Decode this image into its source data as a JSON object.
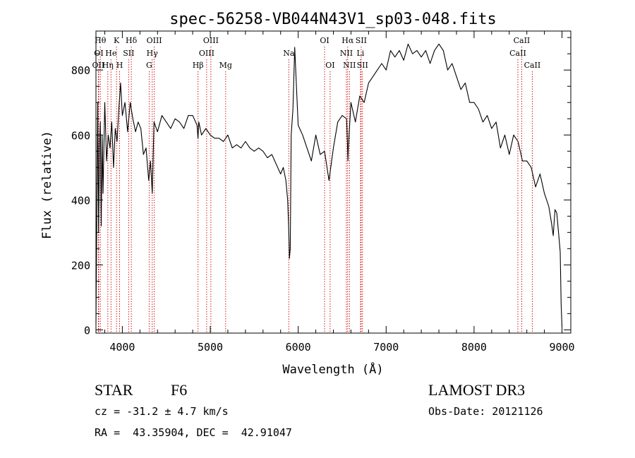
{
  "chart_data": {
    "type": "line",
    "title": "spec-56258-VB044N43V1_sp03-048.fits",
    "xlabel": "Wavelength (Å)",
    "ylabel": "Flux (relative)",
    "xlim": [
      3700,
      9100
    ],
    "ylim": [
      -10,
      920
    ],
    "xticks": [
      4000,
      5000,
      6000,
      7000,
      8000,
      9000
    ],
    "yticks": [
      0,
      200,
      400,
      600,
      800
    ],
    "xtick_labels": [
      "4000",
      "5000",
      "6000",
      "7000",
      "8000",
      "9000"
    ],
    "ytick_labels": [
      "0",
      "200",
      "400",
      "600",
      "800"
    ],
    "line_color": "#000000",
    "marker_color": "#cc0000",
    "series": [
      {
        "name": "flux",
        "x": [
          3700,
          3710,
          3720,
          3730,
          3740,
          3750,
          3760,
          3770,
          3780,
          3800,
          3820,
          3840,
          3860,
          3880,
          3900,
          3920,
          3940,
          3960,
          3980,
          4000,
          4030,
          4060,
          4090,
          4120,
          4150,
          4180,
          4210,
          4240,
          4270,
          4300,
          4320,
          4340,
          4360,
          4400,
          4450,
          4500,
          4550,
          4600,
          4650,
          4700,
          4750,
          4800,
          4850,
          4860,
          4870,
          4900,
          4950,
          5000,
          5050,
          5100,
          5150,
          5200,
          5250,
          5300,
          5350,
          5400,
          5450,
          5500,
          5550,
          5600,
          5650,
          5700,
          5750,
          5800,
          5830,
          5860,
          5880,
          5890,
          5895,
          5900,
          5910,
          5920,
          5940,
          5960,
          6000,
          6050,
          6100,
          6150,
          6200,
          6250,
          6300,
          6350,
          6400,
          6450,
          6500,
          6550,
          6560,
          6565,
          6570,
          6600,
          6650,
          6700,
          6750,
          6800,
          6850,
          6900,
          6950,
          7000,
          7050,
          7100,
          7150,
          7200,
          7250,
          7300,
          7350,
          7400,
          7450,
          7500,
          7550,
          7600,
          7650,
          7700,
          7750,
          7800,
          7850,
          7900,
          7950,
          8000,
          8050,
          8100,
          8150,
          8200,
          8250,
          8300,
          8350,
          8400,
          8450,
          8500,
          8550,
          8600,
          8650,
          8700,
          8750,
          8800,
          8850,
          8880,
          8900,
          8920,
          8940,
          8960,
          8980,
          8990,
          9000
        ],
        "values": [
          20,
          360,
          700,
          300,
          560,
          640,
          320,
          600,
          420,
          700,
          520,
          600,
          560,
          640,
          500,
          620,
          580,
          680,
          760,
          660,
          700,
          610,
          700,
          650,
          610,
          640,
          620,
          540,
          560,
          460,
          520,
          420,
          640,
          610,
          660,
          640,
          620,
          650,
          640,
          620,
          660,
          660,
          630,
          590,
          640,
          600,
          620,
          600,
          590,
          590,
          580,
          600,
          560,
          570,
          560,
          580,
          560,
          550,
          560,
          550,
          530,
          540,
          510,
          480,
          500,
          460,
          400,
          330,
          280,
          220,
          250,
          600,
          680,
          870,
          630,
          600,
          560,
          520,
          600,
          540,
          550,
          460,
          560,
          640,
          660,
          650,
          580,
          520,
          560,
          700,
          640,
          720,
          700,
          760,
          780,
          800,
          820,
          800,
          860,
          840,
          860,
          830,
          880,
          850,
          860,
          840,
          860,
          820,
          860,
          880,
          860,
          800,
          820,
          780,
          740,
          760,
          700,
          700,
          680,
          640,
          660,
          620,
          640,
          560,
          600,
          540,
          600,
          580,
          520,
          520,
          500,
          440,
          480,
          420,
          380,
          330,
          290,
          370,
          360,
          300,
          240,
          80,
          10
        ]
      }
    ],
    "line_markers": [
      {
        "label": "OII",
        "x": 3727,
        "row": 2
      },
      {
        "label": "OI",
        "x": 3732,
        "row": 1
      },
      {
        "label": "Hθ",
        "x": 3750,
        "row": 0
      },
      {
        "label": "Hη",
        "x": 3835,
        "row": 2
      },
      {
        "label": "He",
        "x": 3871,
        "row": 1
      },
      {
        "label": "K",
        "x": 3934,
        "row": 0
      },
      {
        "label": "H",
        "x": 3969,
        "row": 2
      },
      {
        "label": "SII",
        "x": 4072,
        "row": 1
      },
      {
        "label": "Hδ",
        "x": 4102,
        "row": 0
      },
      {
        "label": "G",
        "x": 4305,
        "row": 2
      },
      {
        "label": "Hγ",
        "x": 4340,
        "row": 1
      },
      {
        "label": "OIII",
        "x": 4363,
        "row": 0
      },
      {
        "label": "Hβ",
        "x": 4861,
        "row": 2
      },
      {
        "label": "OIII",
        "x": 4959,
        "row": 1
      },
      {
        "label": "OIII",
        "x": 5007,
        "row": 0
      },
      {
        "label": "Mg",
        "x": 5175,
        "row": 2
      },
      {
        "label": "Na",
        "x": 5893,
        "row": 1
      },
      {
        "label": "OI",
        "x": 6300,
        "row": 0
      },
      {
        "label": "OI",
        "x": 6363,
        "row": 2
      },
      {
        "label": "NII",
        "x": 6548,
        "row": 1
      },
      {
        "label": "Hα",
        "x": 6563,
        "row": 0
      },
      {
        "label": "NII",
        "x": 6583,
        "row": 2
      },
      {
        "label": "Li",
        "x": 6708,
        "row": 1
      },
      {
        "label": "SII",
        "x": 6716,
        "row": 0
      },
      {
        "label": "SII",
        "x": 6731,
        "row": 2
      },
      {
        "label": "CaII",
        "x": 8498,
        "row": 1
      },
      {
        "label": "CaII",
        "x": 8542,
        "row": 0
      },
      {
        "label": "CaII",
        "x": 8662,
        "row": 2
      }
    ]
  },
  "info": {
    "object_class": "STAR",
    "subclass": "F6",
    "survey": "LAMOST DR3",
    "cz": "cz = -31.2 ± 4.7 km/s",
    "obs_date": "Obs-Date: 20121126",
    "coords": "RA =  43.35904, DEC =  42.91047"
  }
}
